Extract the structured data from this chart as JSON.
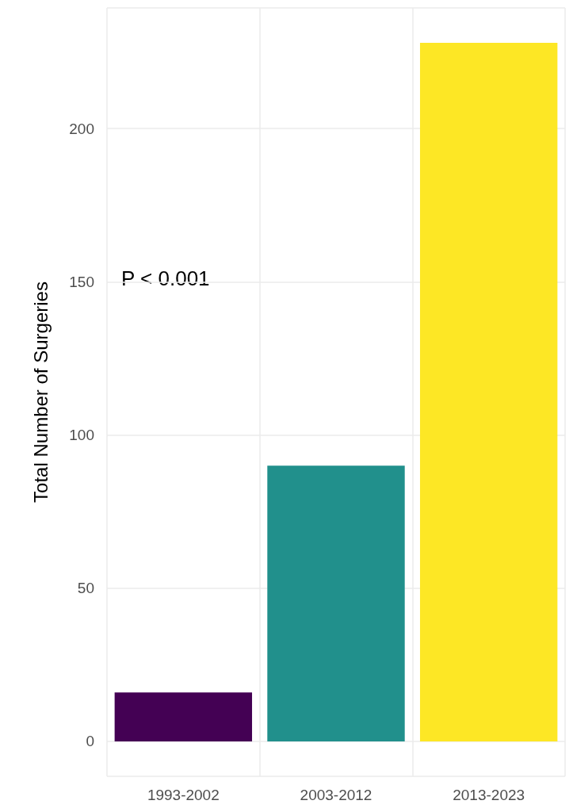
{
  "chart_data": {
    "type": "bar",
    "ylabel": "Total Number of Surgeries",
    "categories": [
      "1993-2002",
      "2003-2012",
      "2013-2023"
    ],
    "values": [
      16,
      90,
      228
    ],
    "colors": [
      "#440154",
      "#21908c",
      "#fde725"
    ],
    "ylim": [
      -11.4,
      239.4
    ],
    "yticks": [
      0,
      50,
      100,
      150,
      200
    ],
    "grid": true,
    "annotations": [
      "P < 0.001"
    ]
  }
}
